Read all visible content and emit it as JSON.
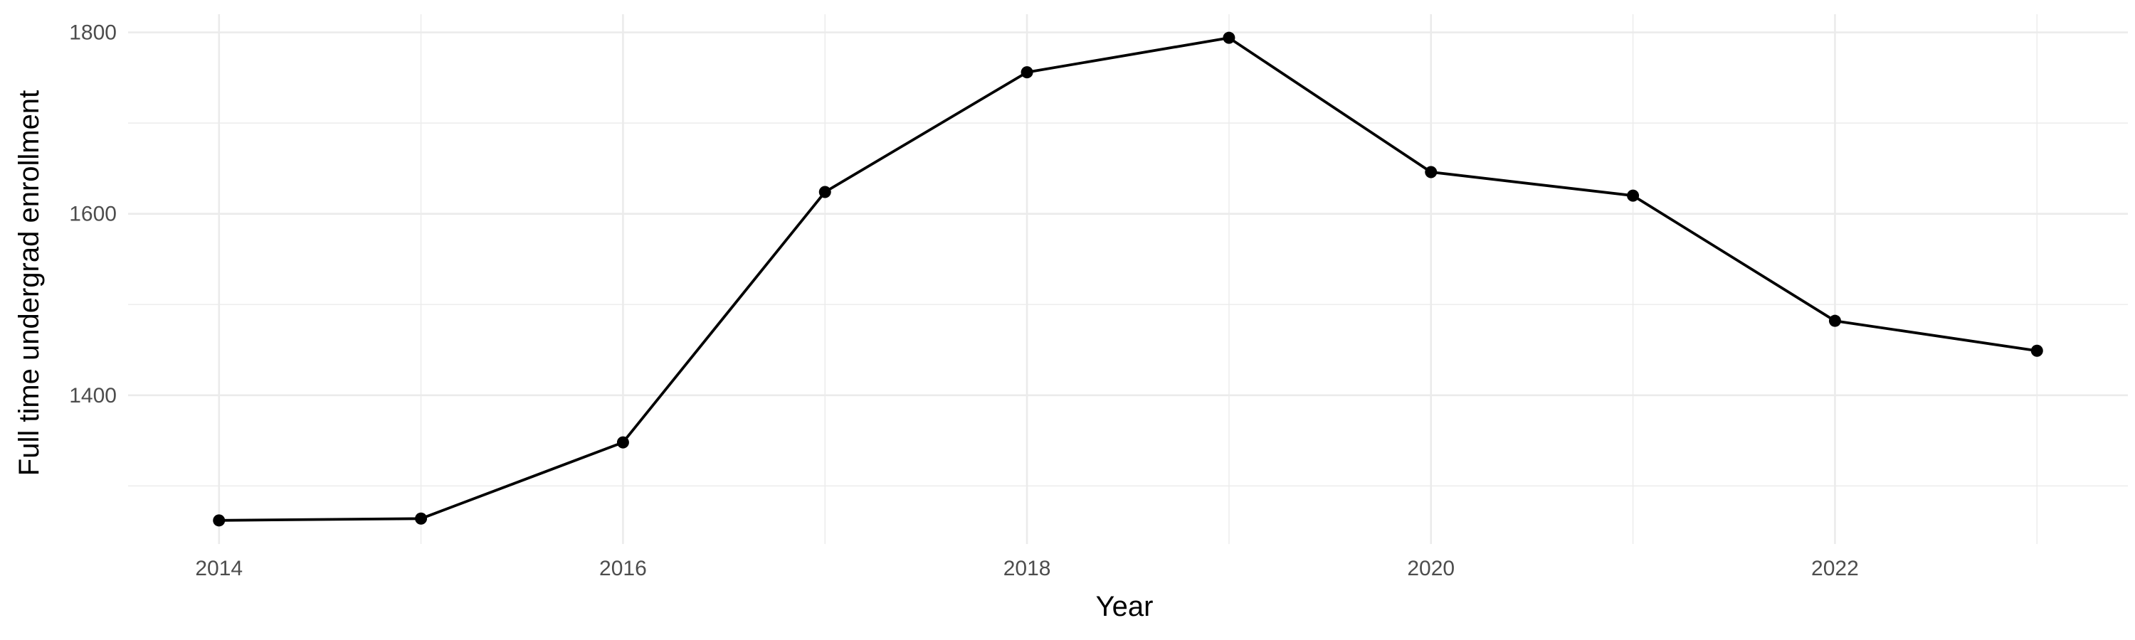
{
  "chart_data": {
    "type": "line",
    "title": "",
    "xlabel": "Year",
    "ylabel": "Full time undergrad enrollment",
    "x": [
      2014,
      2015,
      2016,
      2017,
      2018,
      2019,
      2020,
      2021,
      2022,
      2023
    ],
    "series": [
      {
        "values": [
          1262,
          1264,
          1348,
          1624,
          1756,
          1794,
          1646,
          1620,
          1482,
          1449
        ]
      }
    ],
    "xlim": [
      2013.55,
      2023.45
    ],
    "ylim": [
      1236,
      1820
    ],
    "x_ticks": [
      2014,
      2016,
      2018,
      2020,
      2022
    ],
    "x_tick_labels": [
      "2014",
      "2016",
      "2018",
      "2020",
      "2022"
    ],
    "y_ticks": [
      1400,
      1600,
      1800
    ],
    "y_tick_labels": [
      "1400",
      "1600",
      "1800"
    ],
    "x_minor_ticks": [
      2015,
      2017,
      2019,
      2021,
      2023
    ],
    "y_minor_ticks": [
      1300,
      1500,
      1700
    ],
    "grid": true,
    "legend": "none",
    "colors": {
      "line": "#000000",
      "grid": "#ebebeb",
      "tick_text": "#4d4d4d",
      "background": "#ffffff"
    }
  }
}
